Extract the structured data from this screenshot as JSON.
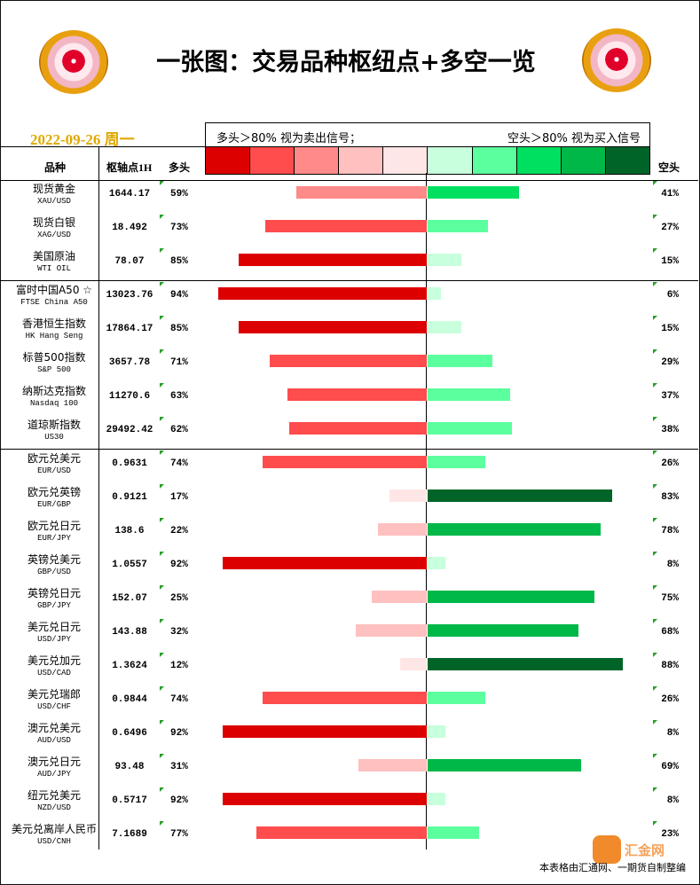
{
  "title": "一张图：交易品种枢纽点+多空一览",
  "date": "2022-09-26 周一",
  "legend": {
    "left": "多头＞80% 视为卖出信号；",
    "right": "空头＞80% 视为买入信号",
    "colors": [
      "#dc0000",
      "#ff4c4c",
      "#ff8a8a",
      "#ffc0c0",
      "#ffe6e6",
      "#c8ffdc",
      "#5cff9e",
      "#00e060",
      "#00b848",
      "#006428"
    ]
  },
  "headers": {
    "product": "品种",
    "pivot": "枢轴点1H",
    "bull": "多头",
    "bear": "空头"
  },
  "footer": "本表格由汇通网、一期货自制整编",
  "watermark": "汇金网",
  "chart_data": {
    "type": "bar",
    "categories": [
      "现货黄金",
      "现货白银",
      "美国原油",
      "富时中国A50 ☆",
      "香港恒生指数",
      "标普500指数",
      "纳斯达克指数",
      "道琼斯指数",
      "欧元兑美元",
      "欧元兑英镑",
      "欧元兑日元",
      "英镑兑美元",
      "英镑兑日元",
      "美元兑日元",
      "美元兑加元",
      "美元兑瑞郎",
      "澳元兑美元",
      "澳元兑日元",
      "纽元兑美元",
      "美元兑离岸人民币"
    ],
    "codes": [
      "XAU/USD",
      "XAG/USD",
      "WTI OIL",
      "FTSE China A50",
      "HK Hang Seng",
      "S&P 500",
      "Nasdaq 100",
      "US30",
      "EUR/USD",
      "EUR/GBP",
      "EUR/JPY",
      "GBP/USD",
      "GBP/JPY",
      "USD/JPY",
      "USD/CAD",
      "USD/CHF",
      "AUD/USD",
      "AUD/JPY",
      "NZD/USD",
      "USD/CNH"
    ],
    "pivots": [
      "1644.17",
      "18.492",
      "78.07",
      "13023.76",
      "17864.17",
      "3657.78",
      "11270.6",
      "29492.42",
      "0.9631",
      "0.9121",
      "138.6",
      "1.0557",
      "152.07",
      "143.88",
      "1.3624",
      "0.9844",
      "0.6496",
      "93.48",
      "0.5717",
      "7.1689"
    ],
    "series": [
      {
        "name": "多头",
        "values": [
          59,
          73,
          85,
          94,
          85,
          71,
          63,
          62,
          74,
          17,
          22,
          92,
          25,
          32,
          12,
          74,
          92,
          31,
          92,
          77
        ]
      },
      {
        "name": "空头",
        "values": [
          41,
          27,
          15,
          6,
          15,
          29,
          37,
          38,
          26,
          83,
          78,
          8,
          75,
          68,
          88,
          26,
          8,
          69,
          8,
          23
        ]
      }
    ],
    "bull_labels": [
      "59%",
      "73%",
      "85%",
      "94%",
      "85%",
      "71%",
      "63%",
      "62%",
      "74%",
      "17%",
      "22%",
      "92%",
      "25%",
      "32%",
      "12%",
      "74%",
      "92%",
      "31%",
      "92%",
      "77%"
    ],
    "bear_labels": [
      "41%",
      "27%",
      "15%",
      "6%",
      "15%",
      "29%",
      "37%",
      "38%",
      "26%",
      "83%",
      "78%",
      "8%",
      "75%",
      "68%",
      "88%",
      "26%",
      "8%",
      "69%",
      "8%",
      "23%"
    ],
    "ylim": [
      0,
      100
    ]
  }
}
